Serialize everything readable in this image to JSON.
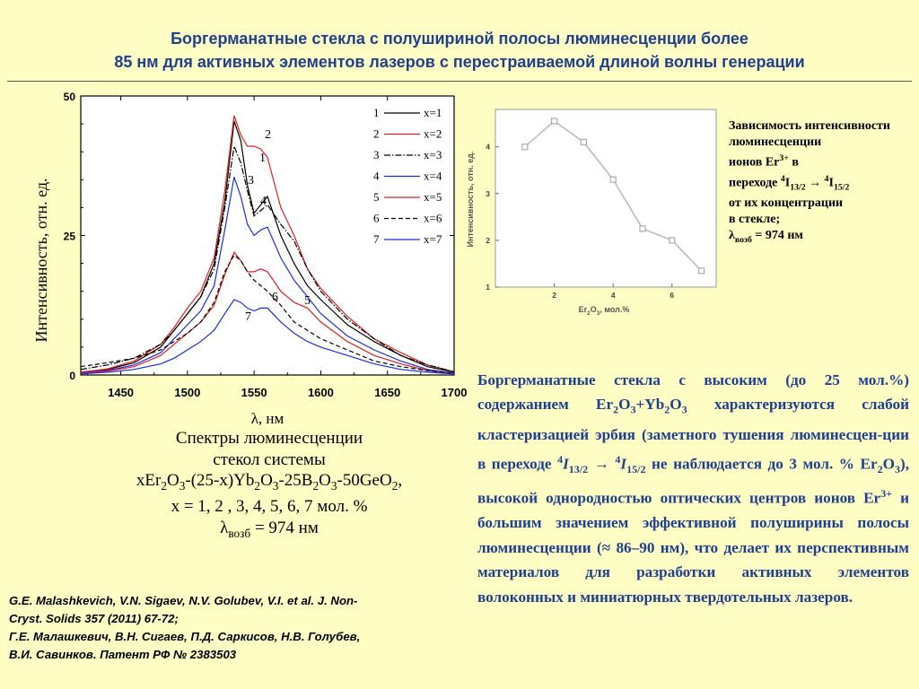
{
  "title": {
    "line1": "Боргерманатные стекла с полушириной полосы люминесценции более",
    "line2": "85 нм для активных элементов лазеров с перестраиваемой длиной волны генерации"
  },
  "spectra": {
    "ylabel": "Интенсивность, отн. ед.",
    "xlabel": "λ, нм",
    "y_ticks": [
      "0",
      "25",
      "50"
    ],
    "x_ticks": [
      "1450",
      "1500",
      "1550",
      "1600",
      "1650",
      "1700"
    ],
    "curve_labels": [
      "1",
      "2",
      "3",
      "4",
      "5",
      "6",
      "7"
    ],
    "legend": [
      {
        "num": "1",
        "label": "x=1",
        "color": "#000000",
        "dash": "none"
      },
      {
        "num": "2",
        "label": "x=2",
        "color": "#e02020",
        "dash": "none"
      },
      {
        "num": "3",
        "label": "x=3",
        "color": "#000000",
        "dash": "7,2,1.5,2"
      },
      {
        "num": "4",
        "label": "x=4",
        "color": "#1a2ee0",
        "dash": "none"
      },
      {
        "num": "5",
        "label": "x=5",
        "color": "#e02020",
        "dash": "none"
      },
      {
        "num": "6",
        "label": "x=6",
        "color": "#000000",
        "dash": "5,3"
      },
      {
        "num": "7",
        "label": "x=7",
        "color": "#1a2ee0",
        "dash": "none"
      }
    ]
  },
  "inset": {
    "ylabel": "Интенсивность, отн. ед.",
    "xlabel_parts": [
      "Er",
      "2",
      "O",
      "3",
      ", мол.%"
    ],
    "y_ticks": [
      "1",
      "2",
      "3",
      "4"
    ],
    "x_ticks": [
      "2",
      "4",
      "6"
    ]
  },
  "caption": {
    "line1": "Спектры люминесценции",
    "line2": "стекол системы",
    "line3_parts": [
      "xEr",
      "2",
      "O",
      "3",
      "-(25-x)Yb",
      "2",
      "O",
      "3",
      "-25B",
      "2",
      "O",
      "3",
      "-50GeO",
      "2",
      ","
    ],
    "line4": "x = 1, 2 , 3, 4, 5, 6, 7 мол. %",
    "line5_parts": [
      "λ",
      "возб",
      " = 974 нм"
    ]
  },
  "refs": {
    "line1": "G.E. Malashkevich, V.N. Sigaev, N.V. Golubev, V.I. et al. J. Non-",
    "line2": "Cryst. Solids 357 (2011) 67-72;",
    "line3": "Г.Е. Малашкевич, В.Н. Сигаев, П.Д. Саркисов, Н.В. Голубев,",
    "line4": "В.И. Савинков. Патент РФ № 2383503"
  },
  "side": {
    "line1": "Зависимость интенсивности",
    "line2": "люминесценции",
    "line3_parts": [
      "ионов Er",
      "3+",
      " в"
    ],
    "line4_parts": [
      "переходе ",
      "4",
      "I",
      "13/2",
      " → ",
      "4",
      "I",
      "15/2"
    ],
    "line5": "от их концентрации",
    "line6": "в стекле;",
    "line7_parts": [
      "λ",
      "возб",
      " = 974 нм"
    ]
  },
  "paragraph": {
    "p1": "Боргерманатные стекла с высоким (до 25 мол.%) содержанием Er",
    "p2": "O",
    "p3": "+Yb",
    "p4": "O",
    "p5": " характеризуются слабой кластеризацией эрбия (заметного тушения люминесцен-ции в переходе ",
    "p6": "I",
    "p7": " → ",
    "p8": "I",
    "p9": "  не наблюдается до 3 мол. % Er",
    "p10": "O",
    "p11": "), высокой однородностью оптических центров ионов Er",
    "p12": " и большим значением эффективной полуширины полосы люминесценции (≈ 86–90 нм), что делает их перспективным материалов для разработки активных элементов волоконных и миниатюрных твердотельных лазеров.",
    "sub2": "2",
    "sub3": "3",
    "sup4": "4",
    "sub132": "13/2",
    "sub152": "15/2",
    "sup3p": "3+"
  },
  "chart_data": [
    {
      "type": "line",
      "xlabel": "λ, нм",
      "ylabel": "Интенсивность, отн. ед.",
      "xlim": [
        1420,
        1700
      ],
      "ylim": [
        0,
        50
      ],
      "series": [
        {
          "name": "x=1",
          "x": [
            1420,
            1440,
            1460,
            1480,
            1490,
            1500,
            1510,
            1520,
            1528,
            1535,
            1540,
            1545,
            1550,
            1555,
            1560,
            1570,
            1580,
            1590,
            1600,
            1620,
            1640,
            1660,
            1680,
            1700
          ],
          "y": [
            0.5,
            1,
            2.2,
            5,
            8,
            11,
            14,
            20,
            31,
            45.5,
            42,
            34,
            29,
            30.5,
            32,
            25,
            20,
            16,
            13.5,
            9,
            6,
            3.5,
            1.5,
            0.5
          ]
        },
        {
          "name": "x=2",
          "x": [
            1420,
            1440,
            1460,
            1480,
            1490,
            1500,
            1510,
            1520,
            1528,
            1535,
            1540,
            1545,
            1550,
            1555,
            1560,
            1570,
            1580,
            1590,
            1600,
            1620,
            1640,
            1660,
            1680,
            1700
          ],
          "y": [
            0.5,
            1.1,
            2.5,
            5.5,
            8.5,
            12,
            15,
            21,
            33,
            46.5,
            43,
            41,
            41,
            40.5,
            39,
            30,
            25,
            19,
            15.5,
            10.5,
            6.5,
            4,
            1.8,
            0.6
          ]
        },
        {
          "name": "x=3",
          "x": [
            1420,
            1440,
            1460,
            1480,
            1490,
            1500,
            1510,
            1520,
            1528,
            1535,
            1540,
            1545,
            1550,
            1555,
            1560,
            1570,
            1580,
            1590,
            1600,
            1620,
            1640,
            1660,
            1680,
            1700
          ],
          "y": [
            1,
            1.8,
            3,
            5.5,
            8,
            11,
            14,
            19,
            30,
            41,
            38,
            33,
            28.5,
            29.5,
            30.5,
            27,
            24,
            19,
            15,
            10,
            6.5,
            3.5,
            1.8,
            0.6
          ]
        },
        {
          "name": "x=4",
          "x": [
            1420,
            1440,
            1460,
            1480,
            1490,
            1500,
            1510,
            1520,
            1528,
            1535,
            1540,
            1545,
            1550,
            1555,
            1560,
            1570,
            1580,
            1590,
            1600,
            1620,
            1640,
            1660,
            1680,
            1700
          ],
          "y": [
            0.4,
            0.8,
            1.8,
            4,
            6.5,
            9,
            11.5,
            16,
            26,
            35.5,
            32,
            27,
            25,
            26,
            26.5,
            21,
            17,
            14,
            11,
            7,
            4.5,
            2.5,
            1,
            0.3
          ]
        },
        {
          "name": "x=5",
          "x": [
            1420,
            1440,
            1460,
            1480,
            1490,
            1500,
            1510,
            1520,
            1528,
            1535,
            1540,
            1545,
            1550,
            1555,
            1560,
            1570,
            1580,
            1590,
            1600,
            1620,
            1640,
            1660,
            1680,
            1700
          ],
          "y": [
            0.3,
            0.7,
            1.5,
            3.5,
            5.5,
            7.5,
            9.5,
            12.5,
            18,
            22,
            20.5,
            18.5,
            18.5,
            19,
            18.5,
            15,
            13,
            12,
            9.5,
            6,
            3.5,
            2,
            0.8,
            0.2
          ]
        },
        {
          "name": "x=6",
          "x": [
            1420,
            1440,
            1460,
            1480,
            1490,
            1500,
            1510,
            1520,
            1528,
            1535,
            1540,
            1545,
            1550,
            1555,
            1560,
            1570,
            1580,
            1590,
            1600,
            1620,
            1640,
            1660,
            1680,
            1700
          ],
          "y": [
            1.5,
            2.2,
            3,
            4.5,
            6,
            7.5,
            9.5,
            13,
            18.5,
            21.5,
            20.5,
            18.5,
            17,
            16,
            15,
            12.5,
            9.5,
            8,
            6.5,
            4.5,
            2.5,
            1.5,
            0.8,
            0.3
          ]
        },
        {
          "name": "x=7",
          "x": [
            1420,
            1440,
            1460,
            1480,
            1490,
            1500,
            1510,
            1520,
            1528,
            1535,
            1540,
            1545,
            1550,
            1555,
            1560,
            1570,
            1580,
            1590,
            1600,
            1620,
            1640,
            1660,
            1680,
            1700
          ],
          "y": [
            0.2,
            0.5,
            1,
            2,
            3,
            4.5,
            6,
            8,
            11,
            13.5,
            13,
            12,
            11.5,
            12,
            12,
            9.5,
            7.5,
            6,
            5,
            3.5,
            2,
            1,
            0.5,
            0.2
          ]
        }
      ]
    },
    {
      "type": "line",
      "xlabel": "Er2O3, мол.%",
      "ylabel": "Интенсивность, отн. ед.",
      "xlim": [
        0,
        7.5
      ],
      "ylim": [
        1,
        4.8
      ],
      "x": [
        1,
        2,
        3,
        4,
        5,
        6,
        7
      ],
      "y": [
        4.0,
        4.55,
        4.1,
        3.3,
        2.25,
        2.0,
        1.35
      ]
    }
  ]
}
